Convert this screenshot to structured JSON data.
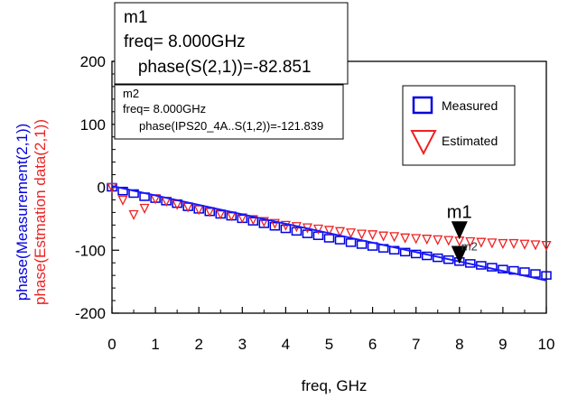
{
  "chart_data": {
    "type": "scatter",
    "xlabel": "freq, GHz",
    "ylabels": [
      "phase(Measurement(2,1))",
      "phase(Estmation data(2,1))"
    ],
    "xlim": [
      0,
      10
    ],
    "ylim": [
      -200,
      200
    ],
    "x_ticks": [
      "0",
      "1",
      "2",
      "3",
      "4",
      "5",
      "6",
      "7",
      "8",
      "9",
      "10"
    ],
    "y_ticks": [
      "200",
      "100",
      "0",
      "-100",
      "-200"
    ],
    "grid": false,
    "legend_position": "top-right",
    "series": [
      {
        "name": "Measured",
        "marker": "square",
        "color": "#0000dd",
        "x": [
          0,
          0.25,
          0.5,
          0.75,
          1,
          1.25,
          1.5,
          1.75,
          2,
          2.25,
          2.5,
          2.75,
          3,
          3.25,
          3.5,
          3.75,
          4,
          4.25,
          4.5,
          4.75,
          5,
          5.25,
          5.5,
          5.75,
          6,
          6.25,
          6.5,
          6.75,
          7,
          7.25,
          7.5,
          7.75,
          8,
          8.25,
          8.5,
          8.75,
          9,
          9.25,
          9.5,
          9.75,
          10
        ],
        "y": [
          0,
          -6,
          -10,
          -15,
          -18,
          -22,
          -26,
          -31,
          -35,
          -39,
          -43,
          -46,
          -50,
          -54,
          -58,
          -62,
          -66,
          -70,
          -74,
          -77,
          -81,
          -84,
          -88,
          -91,
          -94,
          -97,
          -100,
          -103,
          -106,
          -109,
          -112,
          -115,
          -118,
          -121,
          -124,
          -127,
          -130,
          -132,
          -134,
          -137,
          -140
        ]
      },
      {
        "name": "Estimated",
        "marker": "triangle-down",
        "color": "#ee2222",
        "x": [
          0,
          0.25,
          0.5,
          0.75,
          1,
          1.25,
          1.5,
          1.75,
          2,
          2.25,
          2.5,
          2.75,
          3,
          3.25,
          3.5,
          3.75,
          4,
          4.25,
          4.5,
          4.75,
          5,
          5.25,
          5.5,
          5.75,
          6,
          6.25,
          6.5,
          6.75,
          7,
          7.25,
          7.5,
          7.75,
          8,
          8.25,
          8.5,
          8.75,
          9,
          9.25,
          9.5,
          9.75,
          10
        ],
        "y": [
          0,
          -20,
          -43,
          -33,
          -18,
          -22,
          -27,
          -31,
          -35,
          -38,
          -42,
          -45,
          -48,
          -51,
          -54,
          -57,
          -60,
          -62,
          -64,
          -66,
          -68,
          -70,
          -72,
          -74,
          -75,
          -77,
          -78,
          -80,
          -81,
          -82,
          -83,
          -84,
          -85,
          -86,
          -87,
          -88,
          -89,
          -89,
          -90,
          -91,
          -92
        ]
      },
      {
        "name": "",
        "type": "line",
        "color": "#1a1aff",
        "x": [
          0,
          10
        ],
        "y": [
          2,
          -148
        ]
      }
    ],
    "markers": [
      {
        "id": "m1",
        "label": "m1",
        "x": 8,
        "y": -82.851,
        "lines": [
          "m1",
          "freq= 8.000GHz",
          "   phase(S(2,1))=-82.851"
        ]
      },
      {
        "id": "m2",
        "label": "m2",
        "x": 8,
        "y": -121.839,
        "lines": [
          "m2",
          "freq= 8.000GHz",
          "     phase(IPS20_4A..S(1,2))=-121.839"
        ]
      }
    ]
  }
}
